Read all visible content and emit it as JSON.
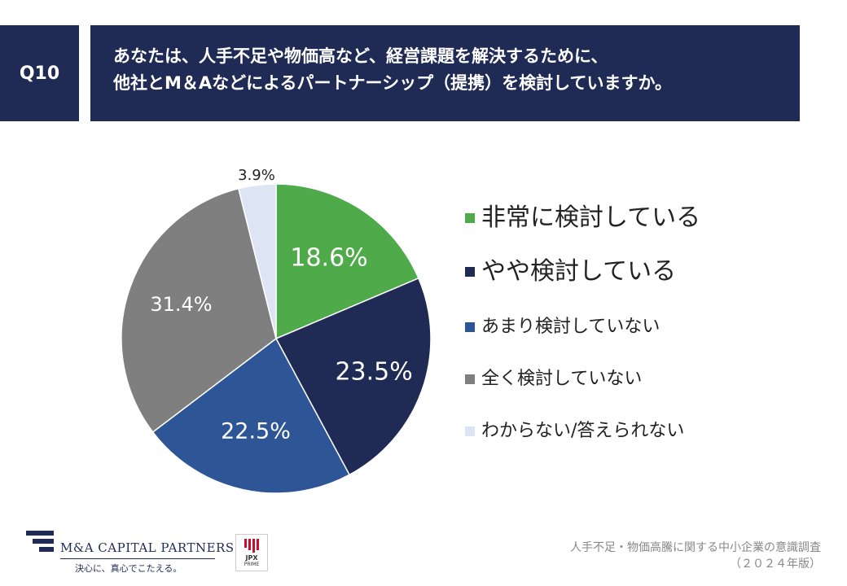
{
  "question": {
    "number": "Q10",
    "line1": "あなたは、人手不足や物価高など、経営課題を解決するために、",
    "line2": "他社とM＆Aなどによるパートナーシップ（提携）を検討していますか。"
  },
  "chart_data": {
    "type": "pie",
    "title": "",
    "start_angle_deg": 0,
    "direction": "clockwise",
    "slices": [
      {
        "label": "非常に検討している",
        "value": 18.6,
        "display": "18.6%",
        "color": "#4fab4a"
      },
      {
        "label": "やや検討している",
        "value": 23.5,
        "display": "23.5%",
        "color": "#1f2a55"
      },
      {
        "label": "あまり検討していない",
        "value": 22.5,
        "display": "22.5%",
        "color": "#2e5596"
      },
      {
        "label": "全く検討していない",
        "value": 31.4,
        "display": "31.4%",
        "color": "#7f7f7f"
      },
      {
        "label": "わからない/答えられない",
        "value": 3.9,
        "display": "3.9%",
        "color": "#dde5f4"
      }
    ],
    "legend_position": "right"
  },
  "legend": [
    {
      "label": "非常に検討している",
      "color": "#4fab4a",
      "emphasis": true
    },
    {
      "label": "やや検討している",
      "color": "#1f2a55",
      "emphasis": true
    },
    {
      "label": "あまり検討していない",
      "color": "#2e5596",
      "emphasis": false
    },
    {
      "label": "全く検討していない",
      "color": "#7f7f7f",
      "emphasis": false
    },
    {
      "label": "わからない/答えられない",
      "color": "#dde5f4",
      "emphasis": false
    }
  ],
  "footer": {
    "survey_title": "人手不足・物価高騰に関する中小企業の意識調査",
    "survey_edition": "（２０２４年版）",
    "company_name": "M&A CAPITAL PARTNERS",
    "company_tagline": "決心に、真心でこたえる。",
    "jpx_mark": "JPX",
    "jpx_sub": "PRIME"
  }
}
